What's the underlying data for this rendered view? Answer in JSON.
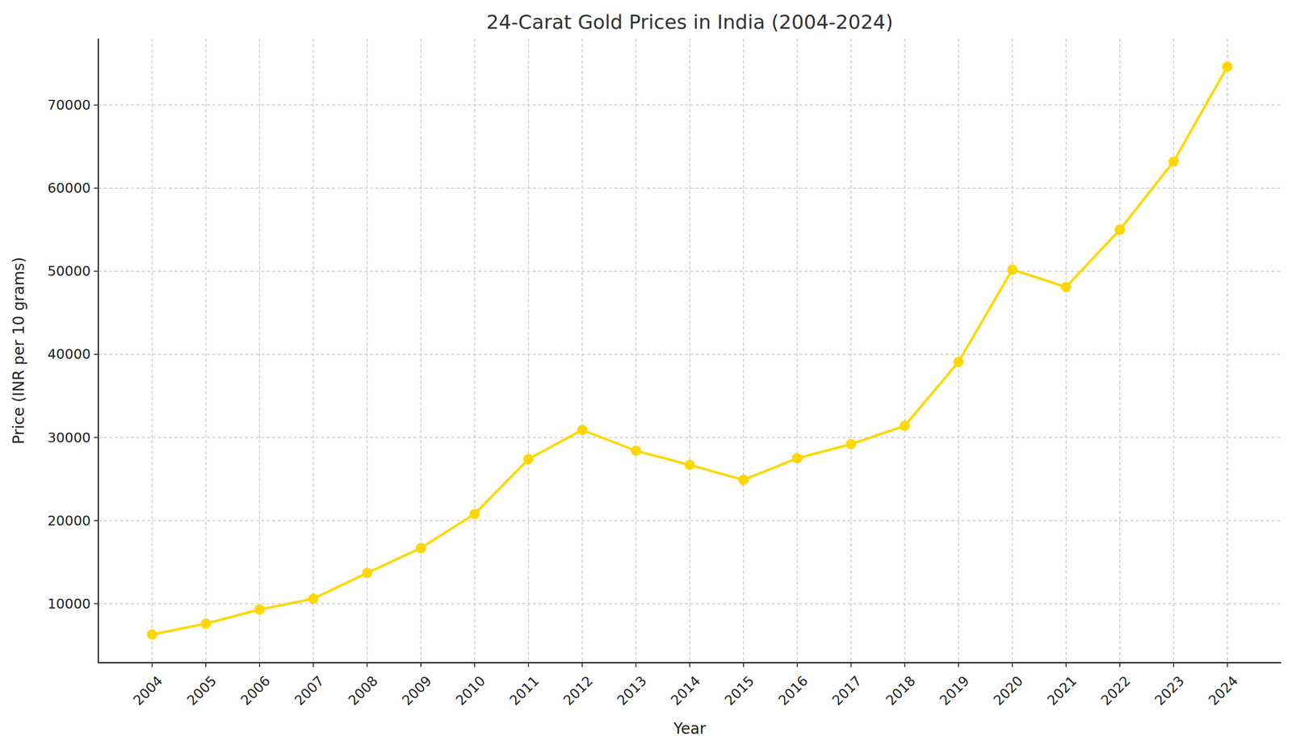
{
  "chart_data": {
    "type": "line",
    "title": "24-Carat Gold Prices in India (2004-2024)",
    "xlabel": "Year",
    "ylabel": "Price (INR per 10 grams)",
    "categories": [
      "2004",
      "2005",
      "2006",
      "2007",
      "2008",
      "2009",
      "2010",
      "2011",
      "2012",
      "2013",
      "2014",
      "2015",
      "2016",
      "2017",
      "2018",
      "2019",
      "2020",
      "2021",
      "2022",
      "2023",
      "2024"
    ],
    "values": [
      6300,
      7600,
      9300,
      10600,
      13700,
      16700,
      20800,
      27400,
      30900,
      28400,
      26700,
      24900,
      27500,
      29200,
      31400,
      39100,
      50200,
      48100,
      55000,
      63200,
      74600
    ],
    "color": "#FFD700",
    "marker": "circle",
    "line_style": "solid",
    "ylim": [
      2900,
      78000
    ],
    "yticks": [
      10000,
      20000,
      30000,
      40000,
      50000,
      60000,
      70000
    ],
    "grid": true
  }
}
